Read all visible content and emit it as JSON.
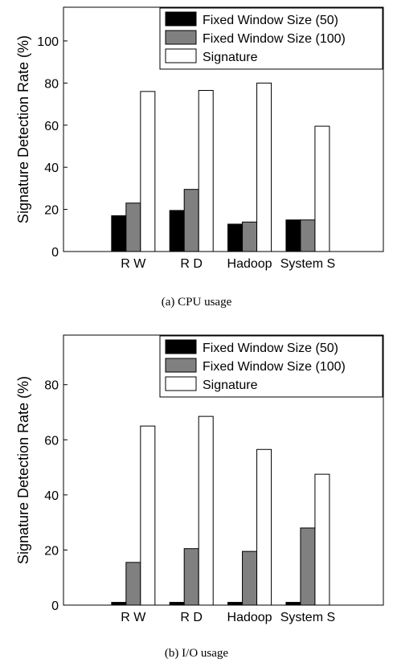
{
  "chart_data": [
    {
      "type": "bar",
      "caption": "(a) CPU usage",
      "ylabel": "Signature Detection Rate (%)",
      "xlabel": "",
      "categories": [
        "R W",
        "R D",
        "Hadoop",
        "System S"
      ],
      "ylim": [
        0,
        116
      ],
      "yticks": [
        0,
        20,
        40,
        60,
        80,
        100
      ],
      "grid": false,
      "legend_position": "top-right",
      "series": [
        {
          "name": "Fixed Window Size (50)",
          "color": "#000000",
          "values": [
            17,
            19.5,
            13,
            15
          ]
        },
        {
          "name": "Fixed Window Size (100)",
          "color": "#808080",
          "values": [
            23,
            29.5,
            14,
            15
          ]
        },
        {
          "name": "Signature",
          "color": "#ffffff",
          "values": [
            76,
            76.5,
            80,
            59.5
          ]
        }
      ]
    },
    {
      "type": "bar",
      "caption": "(b) I/O usage",
      "ylabel": "Signature Detection Rate (%)",
      "xlabel": "",
      "categories": [
        "R W",
        "R D",
        "Hadoop",
        "System S"
      ],
      "ylim": [
        0,
        98
      ],
      "yticks": [
        0,
        20,
        40,
        60,
        80
      ],
      "grid": false,
      "legend_position": "top-right",
      "series": [
        {
          "name": "Fixed Window Size (50)",
          "color": "#000000",
          "values": [
            1,
            1,
            1,
            1
          ]
        },
        {
          "name": "Fixed Window Size (100)",
          "color": "#808080",
          "values": [
            15.5,
            20.5,
            19.5,
            28
          ]
        },
        {
          "name": "Signature",
          "color": "#ffffff",
          "values": [
            65,
            68.5,
            56.5,
            47.5
          ]
        }
      ]
    }
  ]
}
